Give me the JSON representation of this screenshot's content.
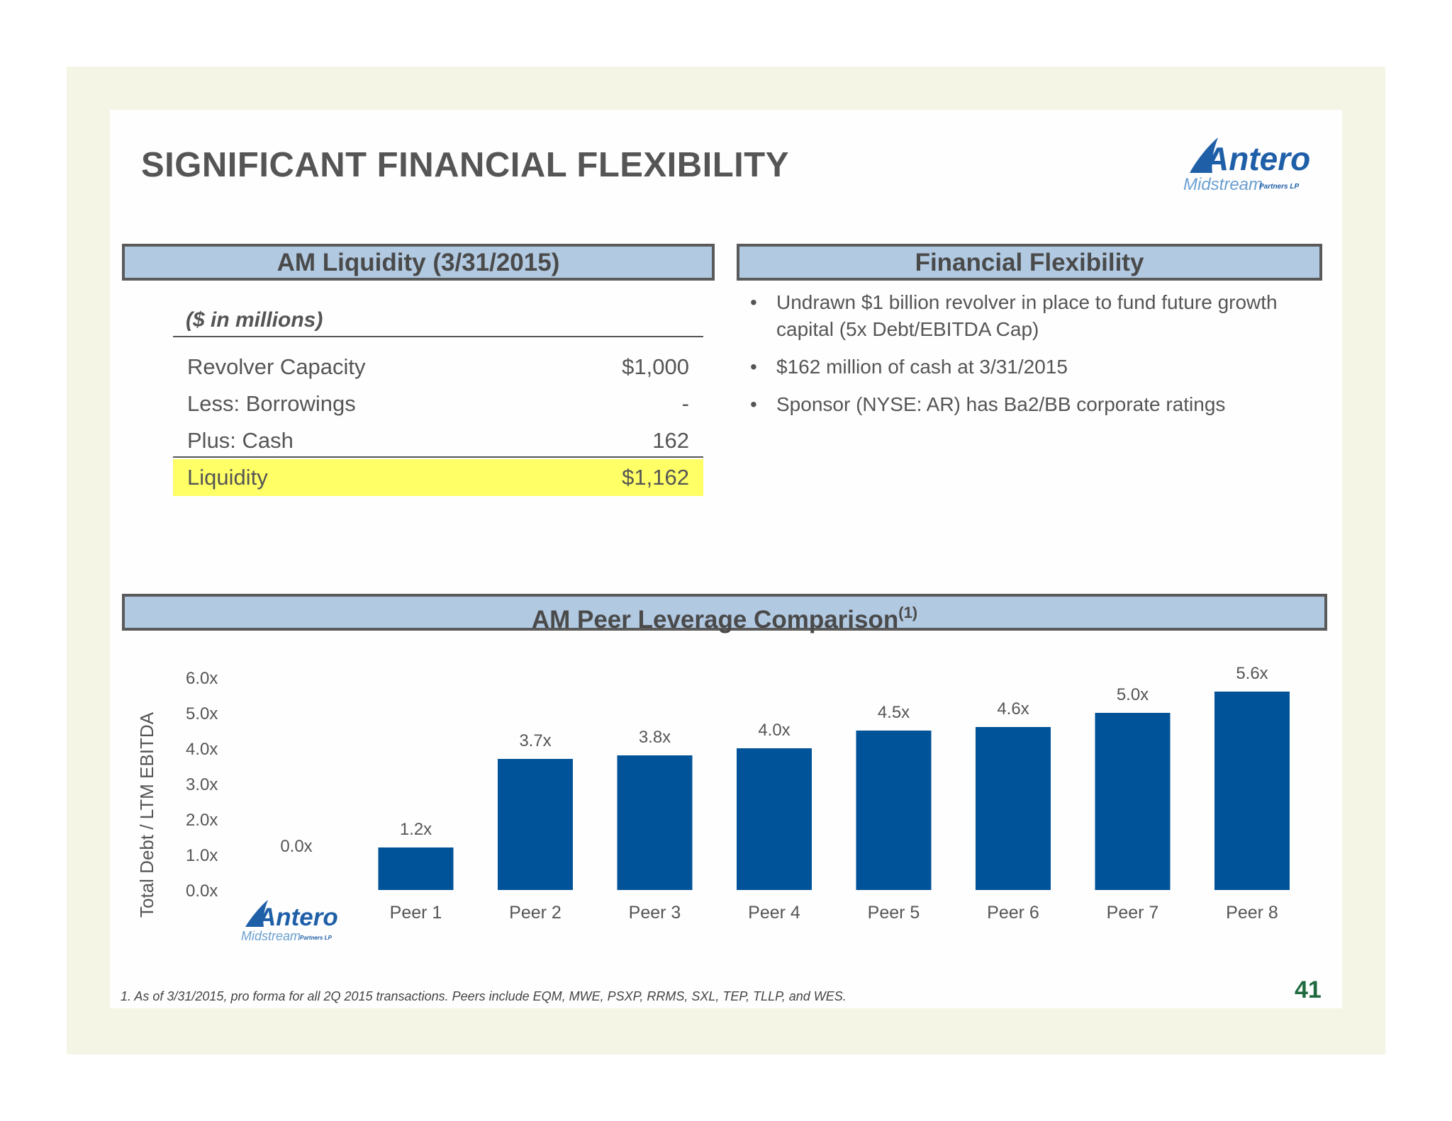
{
  "slide": {
    "title": "SIGNIFICANT FINANCIAL FLEXIBILITY",
    "page_number": "41",
    "footnote": "1.  As of 3/31/2015, pro forma for all 2Q 2015 transactions.  Peers include EQM, MWE, PSXP, RRMS, SXL, TEP, TLLP, and WES.",
    "logo": {
      "main": "Antero",
      "sub": "Midstream",
      "suffix": "Partners LP"
    }
  },
  "liquidity": {
    "header": "AM Liquidity (3/31/2015)",
    "units": "($ in millions)",
    "rows": [
      {
        "label": "Revolver Capacity",
        "value": "$1,000"
      },
      {
        "label": "Less: Borrowings",
        "value": "-"
      },
      {
        "label": "Plus: Cash",
        "value": "162"
      }
    ],
    "total": {
      "label": "Liquidity",
      "value": "$1,162"
    }
  },
  "flexibility": {
    "header": "Financial Flexibility",
    "bullets": [
      "Undrawn $1 billion revolver in place to fund future growth capital (5x Debt/EBITDA Cap)",
      "$162 million of cash at 3/31/2015",
      "Sponsor (NYSE: AR) has Ba2/BB corporate ratings"
    ]
  },
  "peer_comparison": {
    "header": "AM Peer Leverage Comparison",
    "header_sup": "(1)"
  },
  "colors": {
    "bar": "#005398",
    "header_bg": "#b1c9e1",
    "highlight": "#ffff66"
  },
  "chart_data": {
    "type": "bar",
    "title": "AM Peer Leverage Comparison",
    "ylabel": "Total Debt / LTM EBITDA",
    "xlabel": "",
    "categories": [
      "Antero Midstream",
      "Peer 1",
      "Peer 2",
      "Peer 3",
      "Peer 4",
      "Peer 5",
      "Peer 6",
      "Peer 7",
      "Peer 8"
    ],
    "values": [
      0.0,
      1.2,
      3.7,
      3.8,
      4.0,
      4.5,
      4.6,
      5.0,
      5.6
    ],
    "value_labels": [
      "0.0x",
      "1.2x",
      "3.7x",
      "3.8x",
      "4.0x",
      "4.5x",
      "4.6x",
      "5.0x",
      "5.6x"
    ],
    "y_ticks": [
      "0.0x",
      "1.0x",
      "2.0x",
      "3.0x",
      "4.0x",
      "5.0x",
      "6.0x"
    ],
    "ylim": [
      0,
      6
    ],
    "grid": false,
    "legend": "none"
  }
}
